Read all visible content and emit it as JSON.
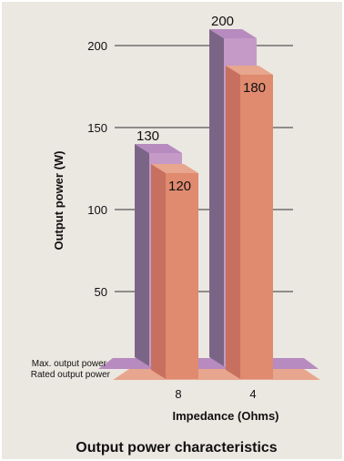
{
  "chart_data": {
    "type": "bar",
    "title": "Output power characteristics",
    "xlabel": "Impedance (Ohms)",
    "ylabel": "Output power (W)",
    "categories": [
      "8",
      "4"
    ],
    "series": [
      {
        "name": "Max. output power",
        "values": [
          130,
          200
        ]
      },
      {
        "name": "Rated output power",
        "values": [
          120,
          180
        ]
      }
    ],
    "ylim": [
      0,
      200
    ],
    "yticks": [
      50,
      100,
      150,
      200
    ],
    "grid": true,
    "style": "3d",
    "legend_position": "bottom-left"
  },
  "colors": {
    "background": "#ebe7e1",
    "max_front": "#c69ac6",
    "max_side": "#7b6587",
    "max_top": "#b78bbf",
    "rated_front": "#e08a6f",
    "rated_side": "#c87060",
    "rated_top": "#e7a68d",
    "grid": "#333333"
  }
}
